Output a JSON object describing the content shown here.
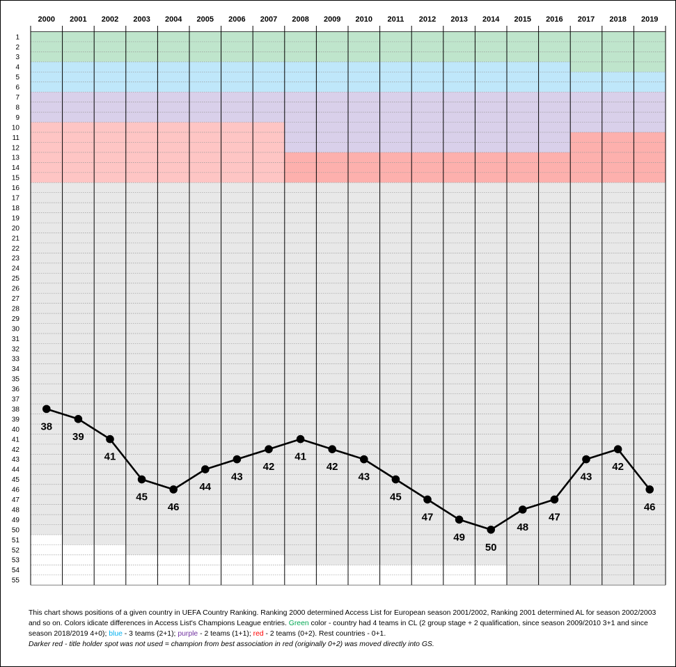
{
  "chart_data": {
    "type": "line",
    "x": [
      "2000",
      "2001",
      "2002",
      "2003",
      "2004",
      "2005",
      "2006",
      "2007",
      "2008",
      "2009",
      "2010",
      "2011",
      "2012",
      "2013",
      "2014",
      "2015",
      "2016",
      "2017",
      "2018",
      "2019"
    ],
    "series": [
      {
        "values": [
          38,
          39,
          41,
          45,
          46,
          44,
          43,
          42,
          41,
          42,
          43,
          45,
          47,
          49,
          50,
          48,
          47,
          43,
          42,
          46
        ]
      }
    ],
    "y_ticks_min": 1,
    "y_ticks_max": 55,
    "y_inverted": true,
    "grid": true,
    "band_colors": {
      "green": "#bfe5cc",
      "blue": "#bfe7fa",
      "purple": "#d9d0ea",
      "red": "#fec5c4",
      "dark_red": "#fdb0ad",
      "grey": "#e8e8e8",
      "white": "#ffffff"
    },
    "bands": [
      {
        "from": "2000",
        "to": "2016",
        "segments": [
          [
            "green",
            1,
            3
          ],
          [
            "blue",
            4,
            6
          ],
          [
            "purple",
            7,
            9
          ]
        ]
      },
      {
        "from": "2000",
        "to": "2007",
        "segments": [
          [
            "red",
            10,
            15
          ]
        ]
      },
      {
        "from": "2008",
        "to": "2016",
        "segments": [
          [
            "purple",
            10,
            12
          ],
          [
            "dark_red",
            13,
            15
          ]
        ]
      },
      {
        "from": "2017",
        "to": "2019",
        "segments": [
          [
            "green",
            1,
            4
          ],
          [
            "blue",
            5,
            6
          ],
          [
            "purple",
            7,
            10
          ],
          [
            "dark_red",
            11,
            15
          ]
        ]
      },
      {
        "from": "2000",
        "to": "2000",
        "segments": [
          [
            "grey",
            16,
            50
          ],
          [
            "white",
            51,
            55
          ]
        ]
      },
      {
        "from": "2001",
        "to": "2002",
        "segments": [
          [
            "grey",
            16,
            51
          ],
          [
            "white",
            52,
            55
          ]
        ]
      },
      {
        "from": "2003",
        "to": "2007",
        "segments": [
          [
            "grey",
            16,
            52
          ],
          [
            "white",
            53,
            55
          ]
        ]
      },
      {
        "from": "2008",
        "to": "2014",
        "segments": [
          [
            "grey",
            16,
            53
          ],
          [
            "white",
            54,
            55
          ]
        ]
      },
      {
        "from": "2015",
        "to": "2017",
        "segments": [
          [
            "grey",
            16,
            55
          ]
        ]
      },
      {
        "from": "2018",
        "to": "2019",
        "segments": [
          [
            "grey",
            16,
            55
          ]
        ]
      }
    ],
    "line_color": "#000000"
  },
  "caption": {
    "p1": "This chart shows positions of a given country in UEFA Country Ranking. Ranking 2000 determined Access List for European season 2001/2002, Ranking 2001 determined AL for season 2002/2003 and so on.  Colors idicate differences in Access List's Champions League entries. ",
    "green_word": "Green",
    "p2": " color - country had 4 teams in CL (2 group stage + 2 qualification, since season 2009/2010 3+1 and since season 2018/2019  4+0); ",
    "blue_word": "blue",
    "p3": " - 3 teams  (2+1); ",
    "purple_word": "purple",
    "p4": " - 2 teams (1+1); ",
    "red_word": "red",
    "p5": " - 2 teams (0+2). Rest countries - 0+1.",
    "note": "Darker red - title holder spot was not used = champion from best association in red (originally 0+2) was moved directly into GS."
  }
}
